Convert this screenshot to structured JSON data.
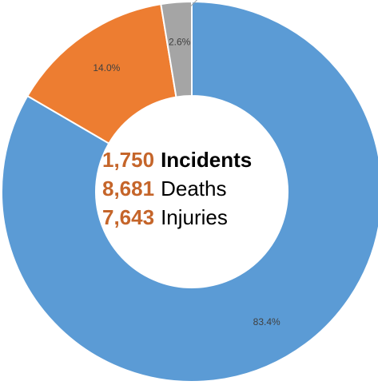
{
  "chart_data": {
    "type": "pie",
    "categories": [
      "",
      "",
      "",
      ""
    ],
    "values": [
      83.4,
      14.0,
      2.6,
      0.0
    ],
    "data_labels": [
      "83.4%",
      "14.0%",
      "2.6%",
      ""
    ],
    "colors": [
      "#5b9bd5",
      "#ed7d31",
      "#a5a5a5",
      "#7f7f7f"
    ],
    "title": "",
    "hole": "donut",
    "legend": "none"
  },
  "center": {
    "incidents_value": "1,750",
    "incidents_label": "Incidents",
    "deaths_value": "8,681",
    "deaths_label": "Deaths",
    "injuries_value": "7,643",
    "injuries_label": "Injuries"
  },
  "colors": {
    "accent": "#c5652a",
    "text": "#000000"
  }
}
